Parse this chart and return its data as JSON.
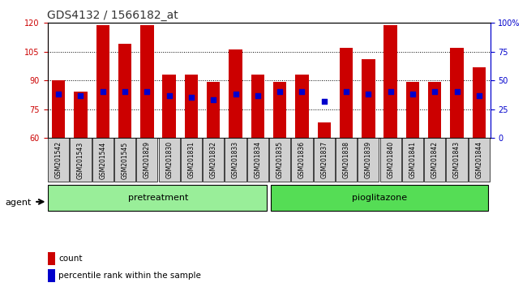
{
  "title": "GDS4132 / 1566182_at",
  "samples": [
    "GSM201542",
    "GSM201543",
    "GSM201544",
    "GSM201545",
    "GSM201829",
    "GSM201830",
    "GSM201831",
    "GSM201832",
    "GSM201833",
    "GSM201834",
    "GSM201835",
    "GSM201836",
    "GSM201837",
    "GSM201838",
    "GSM201839",
    "GSM201840",
    "GSM201841",
    "GSM201842",
    "GSM201843",
    "GSM201844"
  ],
  "bar_heights": [
    90,
    84,
    119,
    109,
    119,
    93,
    93,
    89,
    106,
    93,
    89,
    93,
    68,
    107,
    101,
    119,
    89,
    89,
    107,
    97
  ],
  "blue_dot_y": [
    83,
    82,
    84,
    84,
    84,
    82,
    81,
    80,
    83,
    82,
    84,
    84,
    79,
    84,
    83,
    84,
    83,
    84,
    84,
    82
  ],
  "pretreatment_count": 10,
  "pioglitazone_count": 10,
  "ylim_left": [
    60,
    120
  ],
  "ylim_right": [
    0,
    100
  ],
  "yticks_left": [
    60,
    75,
    90,
    105,
    120
  ],
  "yticks_right": [
    0,
    25,
    50,
    75,
    100
  ],
  "bar_color": "#cc0000",
  "dot_color": "#0000cc",
  "bg_color": "#e8e8e8",
  "pretreat_color": "#99ee99",
  "pioglitazone_color": "#55dd55",
  "agent_label": "agent",
  "legend_count": "count",
  "legend_pct": "percentile rank within the sample",
  "title_color": "#333333",
  "axis_left_color": "#cc0000",
  "axis_right_color": "#0000cc"
}
